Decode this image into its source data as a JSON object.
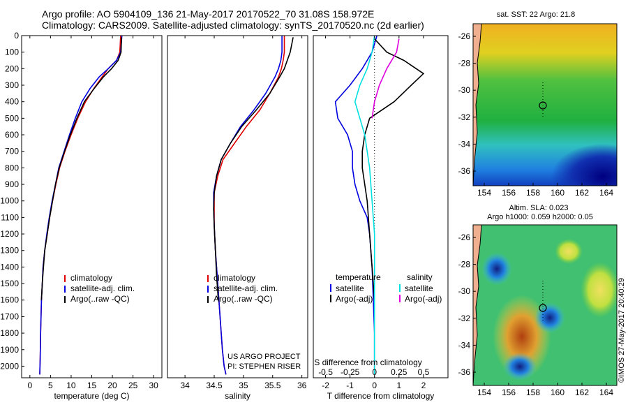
{
  "header": {
    "line1": "Argo profile: AO 5904109_136 21-May-2017 20170522_70 31.08S 158.972E",
    "line2": "Climatology: CARS2009. Satellite-adjusted climatology: synTS_20170520.nc (2d earlier)"
  },
  "colors": {
    "climatology": "#e00000",
    "satellite": "#0000e0",
    "argo": "#000000",
    "satellite_s": "#00e0e0",
    "argo_s": "#e000e0"
  },
  "chart_data": [
    {
      "id": "temperature",
      "type": "line",
      "xlabel": "temperature (deg C)",
      "ylim": [
        2070,
        0
      ],
      "xlim": [
        -2,
        32
      ],
      "xticks": [
        "0",
        "5",
        "10",
        "15",
        "20",
        "25",
        "30"
      ],
      "xtick_values": [
        0,
        5,
        10,
        15,
        20,
        25,
        30
      ],
      "yticks": [
        "0",
        "100",
        "200",
        "300",
        "400",
        "500",
        "600",
        "700",
        "800",
        "900",
        "1000",
        "1100",
        "1200",
        "1300",
        "1400",
        "1500",
        "1600",
        "1700",
        "1800",
        "1900",
        "2000"
      ],
      "legend": [
        "climatology",
        "satellite-adj. clim.",
        "Argo(..raw -QC)"
      ],
      "series": [
        {
          "name": "climatology",
          "color_key": "climatology",
          "x": [
            22.0,
            21.8,
            21.0,
            19.0,
            17.5,
            15.5,
            13.5,
            11.6,
            10.0,
            8.5,
            7.2,
            6.3,
            5.5,
            4.8,
            4.2,
            3.6,
            3.2,
            3.0,
            2.8,
            2.6,
            2.5,
            2.4
          ],
          "y": [
            0,
            100,
            150,
            200,
            250,
            320,
            400,
            500,
            600,
            700,
            800,
            900,
            1000,
            1100,
            1200,
            1300,
            1400,
            1500,
            1600,
            1800,
            1950,
            2050
          ]
        },
        {
          "name": "satellite-adj. clim.",
          "color_key": "satellite",
          "x": [
            22.3,
            22.0,
            21.0,
            19.0,
            16.8,
            14.6,
            12.6,
            11.0,
            9.6,
            8.3,
            7.0,
            6.2,
            5.4,
            4.7,
            4.1,
            3.6,
            3.2,
            3.0,
            2.8,
            2.6,
            2.5,
            2.4
          ],
          "y": [
            0,
            100,
            150,
            200,
            250,
            320,
            400,
            500,
            600,
            700,
            800,
            900,
            1000,
            1100,
            1200,
            1300,
            1400,
            1500,
            1600,
            1800,
            1950,
            2050
          ]
        },
        {
          "name": "Argo(..raw -QC)",
          "color_key": "argo",
          "x": [
            22.2,
            22.1,
            21.4,
            19.8,
            17.8,
            15.6,
            13.2,
            11.4,
            9.8,
            8.4,
            7.1,
            6.2,
            5.5,
            4.8,
            4.2,
            3.6,
            3.3,
            3.0,
            2.8
          ],
          "y": [
            10,
            100,
            150,
            200,
            250,
            320,
            400,
            500,
            600,
            700,
            800,
            900,
            1000,
            1100,
            1200,
            1300,
            1400,
            1500,
            1600
          ]
        }
      ]
    },
    {
      "id": "salinity",
      "type": "line",
      "xlabel": "salinity",
      "ylim": [
        2070,
        0
      ],
      "xlim": [
        33.7,
        36.1
      ],
      "xticks": [
        "34",
        "34.5",
        "35",
        "35.5",
        "36"
      ],
      "xtick_values": [
        34,
        34.5,
        35,
        35.5,
        36
      ],
      "legend": [
        "climatology",
        "satellite-adj. clim.",
        "Argo(..raw -QC)"
      ],
      "annotations": [
        "US ARGO PROJECT",
        "PI: STEPHEN RISER"
      ],
      "series": [
        {
          "name": "climatology",
          "color_key": "climatology",
          "x": [
            35.7,
            35.7,
            35.68,
            35.65,
            35.6,
            35.45,
            35.28,
            35.05,
            34.85,
            34.65,
            34.56,
            34.5,
            34.5,
            34.5,
            34.52,
            34.55,
            34.58,
            34.61,
            34.64,
            34.67,
            34.7
          ],
          "y": [
            0,
            100,
            150,
            200,
            250,
            350,
            450,
            550,
            650,
            750,
            850,
            950,
            1050,
            1150,
            1300,
            1450,
            1600,
            1750,
            1900,
            2000,
            2050
          ]
        },
        {
          "name": "satellite-adj. clim.",
          "color_key": "satellite",
          "x": [
            35.66,
            35.66,
            35.64,
            35.6,
            35.54,
            35.38,
            35.18,
            34.95,
            34.78,
            34.62,
            34.54,
            34.49,
            34.49,
            34.5,
            34.52,
            34.55,
            34.58,
            34.61,
            34.64,
            34.67,
            34.7
          ],
          "y": [
            0,
            100,
            150,
            200,
            250,
            350,
            450,
            550,
            650,
            750,
            850,
            950,
            1050,
            1150,
            1300,
            1450,
            1600,
            1750,
            1900,
            2000,
            2050
          ]
        },
        {
          "name": "Argo(..raw -QC)",
          "color_key": "argo",
          "x": [
            35.85,
            35.8,
            35.75,
            35.7,
            35.62,
            35.45,
            35.22,
            34.97,
            34.78,
            34.62,
            34.54,
            34.5,
            34.49,
            34.5,
            34.52,
            34.54,
            34.57
          ],
          "y": [
            10,
            100,
            150,
            200,
            250,
            350,
            450,
            550,
            650,
            750,
            850,
            950,
            1050,
            1150,
            1300,
            1450,
            1600
          ]
        }
      ]
    },
    {
      "id": "differences",
      "type": "line",
      "xlabel": "T difference from climatology",
      "top_label": "S difference from climatology",
      "ylim": [
        2070,
        0
      ],
      "xlim": [
        -2.5,
        3.0
      ],
      "xticks": [
        "-2",
        "-1",
        "0",
        "1",
        "2"
      ],
      "xtick_values": [
        -2,
        -1,
        0,
        1,
        2
      ],
      "top_ticks": [
        "-0.5",
        "-0.25",
        "0",
        "0.25",
        "0.5"
      ],
      "top_tick_values": [
        -2,
        -1,
        0,
        1,
        2
      ],
      "legend_titles": [
        "temperature",
        "salinity"
      ],
      "legend": [
        "satellite",
        "Argo(-adj)",
        "satellite",
        "Argo(-adj)"
      ],
      "series": [
        {
          "name": "satellite",
          "color_key": "satellite",
          "x": [
            0.1,
            -0.1,
            -0.5,
            -1.0,
            -1.6,
            -1.5,
            -1.1,
            -0.9,
            -0.9,
            -0.8,
            -0.6,
            -0.3,
            -0.2,
            -0.1,
            -0.05,
            0.0,
            0.0
          ],
          "y": [
            0,
            100,
            200,
            300,
            400,
            500,
            600,
            700,
            800,
            900,
            1000,
            1100,
            1200,
            1400,
            1600,
            1800,
            2050
          ]
        },
        {
          "name": "Argo(-adj)",
          "color_key": "argo",
          "x": [
            0.0,
            0.5,
            1.2,
            2.0,
            1.5,
            0.8,
            -0.2,
            -0.4,
            -0.5,
            -0.5,
            -0.4,
            -0.3,
            -0.2,
            -0.1,
            0.0
          ],
          "y": [
            20,
            100,
            150,
            230,
            300,
            400,
            500,
            600,
            700,
            800,
            900,
            1000,
            1200,
            1400,
            1600
          ]
        },
        {
          "name": "satellite",
          "color_key": "satellite_s",
          "x": [
            0.0,
            -0.1,
            -0.3,
            -0.6,
            -0.8,
            -0.6,
            -0.4,
            -0.2,
            -0.1,
            0.0,
            0.0,
            0.0,
            0.0
          ],
          "y": [
            0,
            100,
            200,
            300,
            400,
            500,
            600,
            800,
            1000,
            1200,
            1500,
            1800,
            2050
          ]
        },
        {
          "name": "Argo(-adj)",
          "color_key": "argo_s",
          "x": [
            1.0,
            0.9,
            0.5,
            0.2,
            0.0,
            -0.1
          ],
          "y": [
            20,
            100,
            200,
            300,
            400,
            500
          ]
        }
      ]
    }
  ],
  "maps": {
    "sst": {
      "title": "sat. SST: 22 Argo: 21.8",
      "xticks": [
        "154",
        "156",
        "158",
        "160",
        "162",
        "164"
      ],
      "yticks": [
        "-26",
        "-28",
        "-30",
        "-32",
        "-34",
        "-36"
      ]
    },
    "sla": {
      "title_line1": "Altim. SLA: 0.023",
      "title_line2": "Argo h1000: 0.059 h2000: 0.05",
      "xticks": [
        "154",
        "156",
        "158",
        "160",
        "162",
        "164"
      ],
      "yticks": [
        "-26",
        "-28",
        "-30",
        "-32",
        "-34",
        "-36"
      ]
    }
  },
  "credit": "©IMOS 27-May-2017 20:40:29"
}
